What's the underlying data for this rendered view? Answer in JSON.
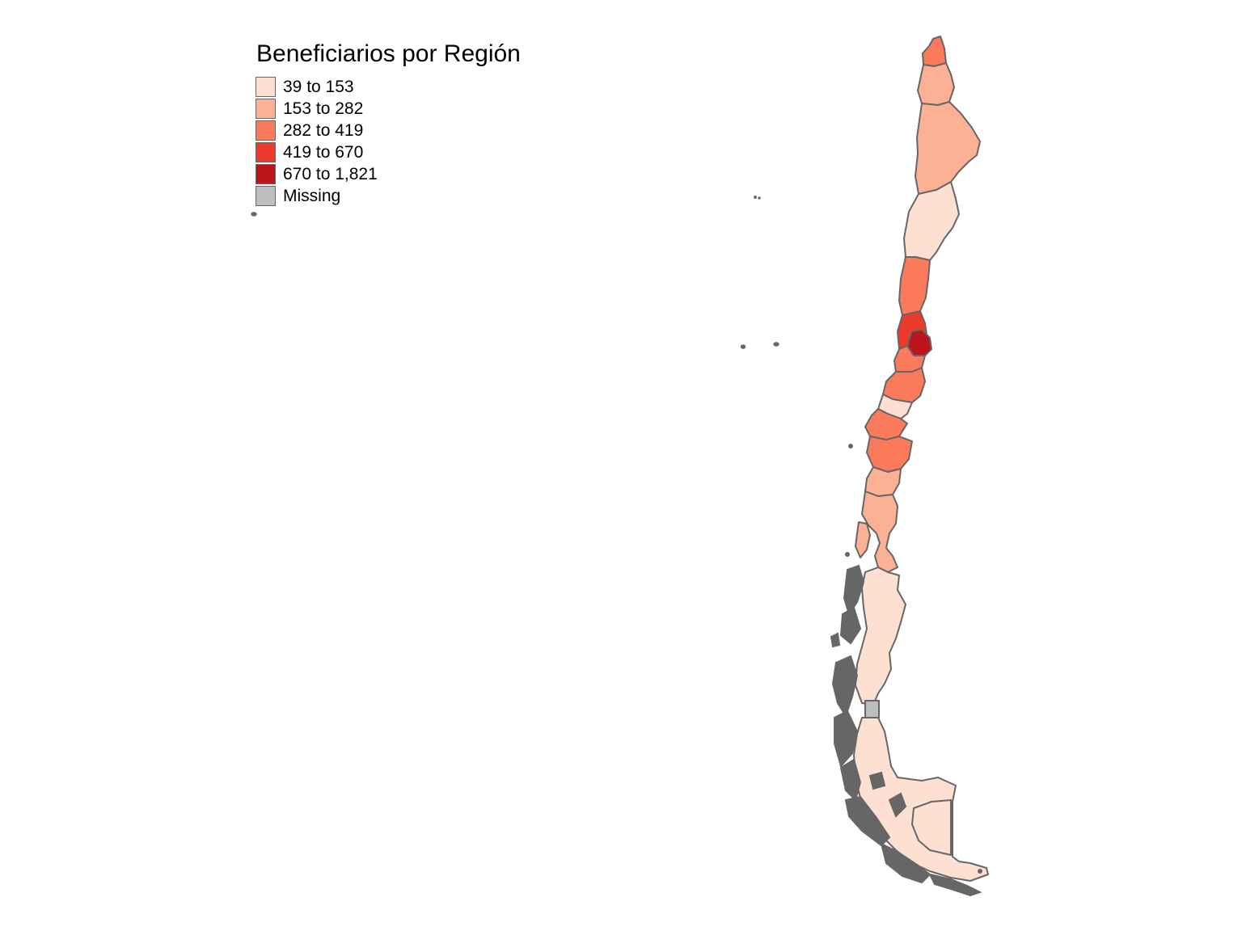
{
  "legend": {
    "title": "Beneficiarios por Región",
    "items": [
      {
        "label": "39 to 153",
        "color": "#fee0d2"
      },
      {
        "label": "153 to 282",
        "color": "#fcb195"
      },
      {
        "label": "282 to 419",
        "color": "#fb7a5b"
      },
      {
        "label": "419 to 670",
        "color": "#ec3a2c"
      },
      {
        "label": "670 to 1,821",
        "color": "#bc141a"
      },
      {
        "label": "Missing",
        "color": "#bebebe"
      }
    ]
  },
  "colors": {
    "border": "#666666",
    "background": "#ffffff"
  }
}
